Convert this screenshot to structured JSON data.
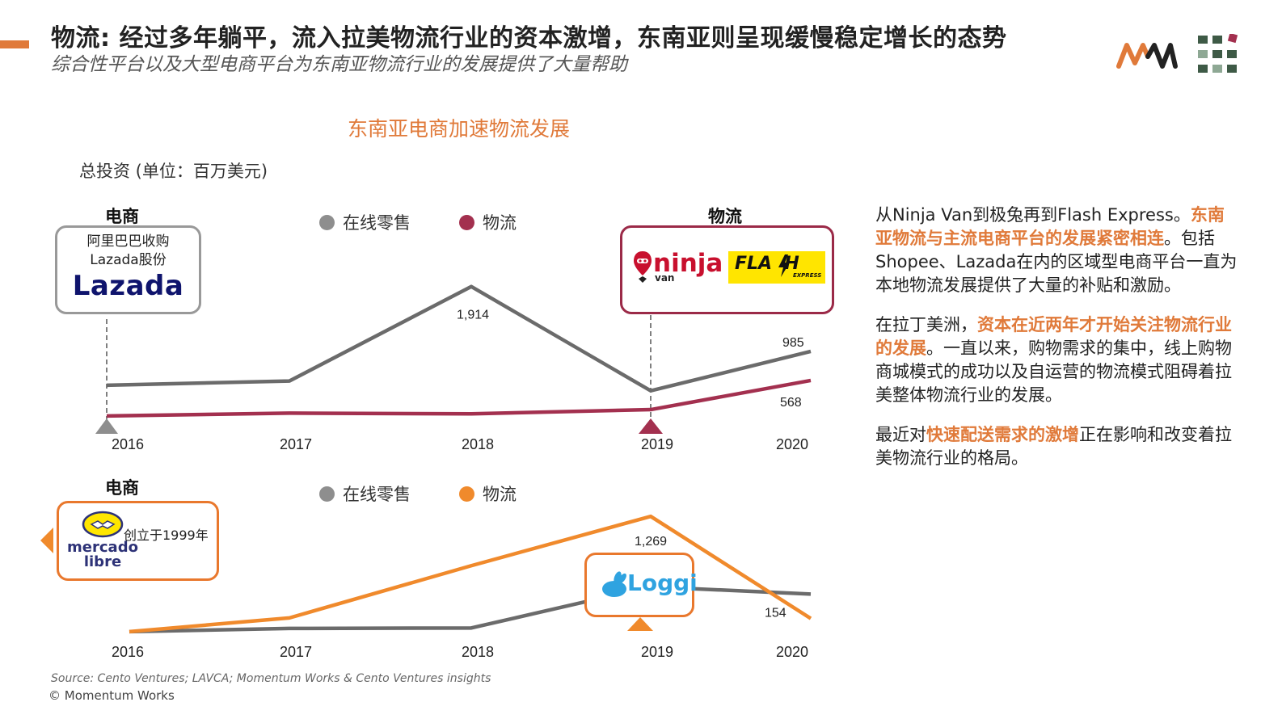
{
  "header": {
    "title": "物流: 经过多年躺平，流入拉美物流行业的资本激增，东南亚则呈现缓慢稳定增长的态势",
    "subtitle": "综合性平台以及大型电商平台为东南亚物流行业的发展提供了大量帮助",
    "section_title": "东南亚电商加速物流发展",
    "unit_label": "总投资 (单位：百万美元)"
  },
  "colors": {
    "accent": "#e07a3a",
    "online_retail": "#6b6b6b",
    "logistics_sea": "#a3304f",
    "logistics_latam": "#f08a2c"
  },
  "chart_data": [
    {
      "type": "line",
      "region": "东南亚",
      "x": [
        "2016",
        "2017",
        "2018",
        "2019",
        "2020"
      ],
      "series": [
        {
          "name": "在线零售",
          "values": [
            500,
            560,
            1914,
            420,
            985
          ]
        },
        {
          "name": "物流",
          "values": [
            60,
            100,
            90,
            150,
            568
          ]
        }
      ],
      "data_labels": [
        {
          "series": "在线零售",
          "x": "2018",
          "text": "1,914"
        },
        {
          "series": "在线零售",
          "x": "2020",
          "text": "985"
        },
        {
          "series": "物流",
          "x": "2020",
          "text": "568"
        }
      ],
      "ylim": [
        0,
        2200
      ],
      "legend": "top-center",
      "grid": false,
      "annotations": [
        {
          "label": "电商",
          "x": "2016",
          "text": "阿里巴巴收购\nLazada股份",
          "logo": "Lazada"
        },
        {
          "label": "物流",
          "x": "2019",
          "logos": [
            "ninja van",
            "FLASH EXPRESS"
          ]
        }
      ]
    },
    {
      "type": "line",
      "region": "拉美",
      "x": [
        "2016",
        "2017",
        "2018",
        "2019",
        "2020"
      ],
      "series": [
        {
          "name": "在线零售",
          "values": [
            10,
            45,
            50,
            500,
            420
          ]
        },
        {
          "name": "物流",
          "values": [
            10,
            160,
            730,
            1269,
            154
          ]
        }
      ],
      "data_labels": [
        {
          "series": "物流",
          "x": "2019",
          "text": "1,269"
        },
        {
          "series": "物流",
          "x": "2020",
          "text": "154"
        }
      ],
      "ylim": [
        0,
        1350
      ],
      "legend": "top-center",
      "grid": false,
      "annotations": [
        {
          "label": "电商",
          "x": "2016",
          "text": "创立于1999年",
          "logo": "mercado libre"
        },
        {
          "x": "2019",
          "logo": "Loggi"
        }
      ]
    }
  ],
  "panels": {
    "top": {
      "left_label": "电商",
      "right_label": "物流",
      "legend_retail": "在线零售",
      "legend_logistics": "物流",
      "lazada_caption": "阿里巴巴收购\nLazada股份",
      "lazada_logo": "Lazada",
      "ninja_logo": "ninja",
      "ninja_sub": "van",
      "flash_logo": "FLA  H",
      "flash_sub": "EXPRESS"
    },
    "bottom": {
      "left_label": "电商",
      "legend_retail": "在线零售",
      "legend_logistics": "物流",
      "meli_caption": "创立于1999年",
      "meli_logo_1": "mercado",
      "meli_logo_2": "libre",
      "loggi_logo": "Loggi"
    }
  },
  "right_text": {
    "p1_a": "从Ninja Van到极兔再到Flash Express。",
    "p1_hl": "东南亚物流与主流电商平台的发展紧密相连",
    "p1_b": "。包括Shopee、Lazada在内的区域型电商平台一直为本地物流发展提供了大量的补贴和激励。",
    "p2_a": "在拉丁美洲，",
    "p2_hl": "资本在近两年才开始关注物流行业的发展",
    "p2_b": "。一直以来，购物需求的集中，线上购物商城模式的成功以及自运营的物流模式阻碍着拉美整体物流行业的发展。",
    "p3_a": "最近对",
    "p3_hl": "快速配送需求的激增",
    "p3_b": "正在影响和改变着拉美物流行业的格局。"
  },
  "footer": {
    "source": "Source: Cento Ventures; LAVCA; Momentum Works & Cento Ventures insights",
    "copyright": "© Momentum Works"
  },
  "brand": {
    "logo_text": "MW"
  }
}
